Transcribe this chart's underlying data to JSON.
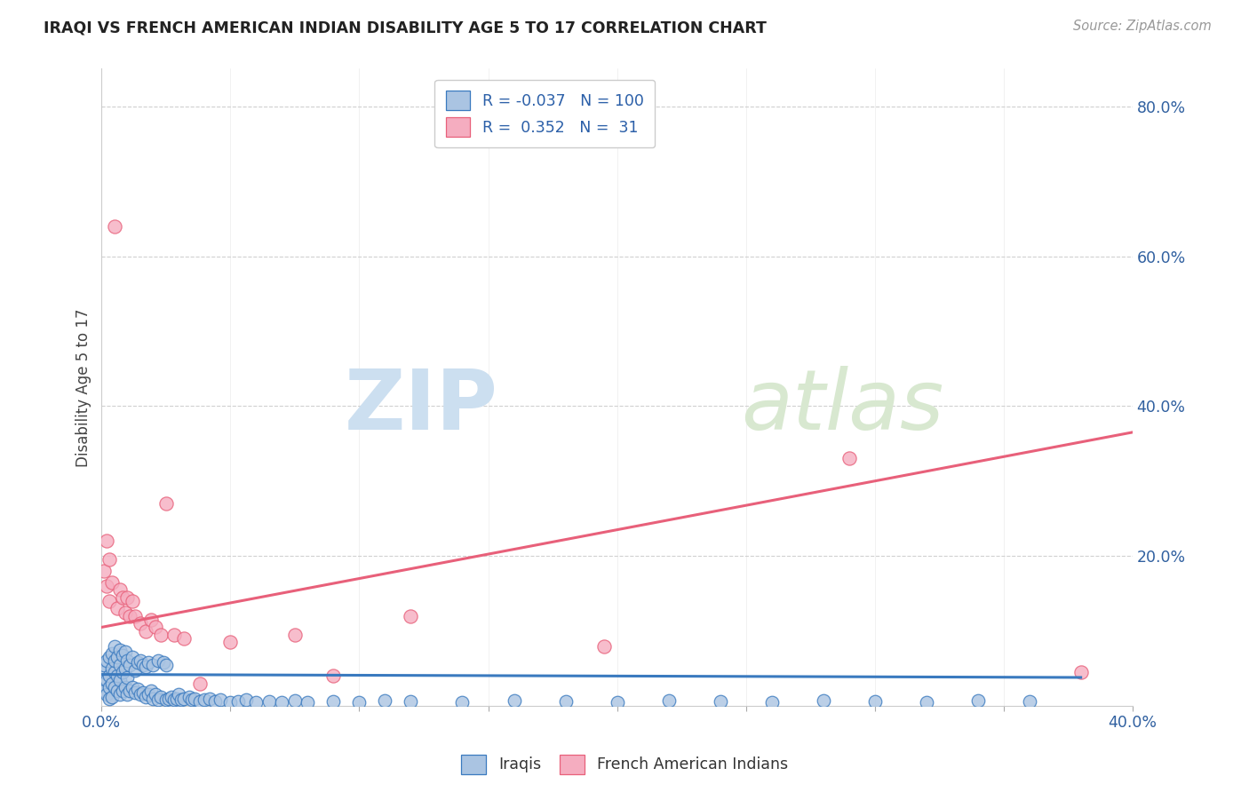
{
  "title": "IRAQI VS FRENCH AMERICAN INDIAN DISABILITY AGE 5 TO 17 CORRELATION CHART",
  "source": "Source: ZipAtlas.com",
  "ylabel": "Disability Age 5 to 17",
  "xlim": [
    0.0,
    0.4
  ],
  "ylim": [
    0.0,
    0.85
  ],
  "iraqis_R": -0.037,
  "iraqis_N": 100,
  "french_R": 0.352,
  "french_N": 31,
  "iraqis_color": "#aac4e2",
  "french_color": "#f5adc0",
  "iraqis_line_color": "#3a7abf",
  "french_line_color": "#e8607a",
  "legend_iraqis_label": "Iraqis",
  "legend_french_label": "French American Indians",
  "watermark_zip": "ZIP",
  "watermark_atlas": "atlas",
  "grid_color": "#d0d0d0",
  "right_yticks": [
    0.2,
    0.4,
    0.6,
    0.8
  ],
  "right_yticklabels": [
    "20.0%",
    "40.0%",
    "60.0%",
    "80.0%"
  ],
  "iraqis_x": [
    0.0,
    0.001,
    0.001,
    0.001,
    0.002,
    0.002,
    0.002,
    0.003,
    0.003,
    0.003,
    0.003,
    0.004,
    0.004,
    0.004,
    0.004,
    0.005,
    0.005,
    0.005,
    0.005,
    0.006,
    0.006,
    0.006,
    0.007,
    0.007,
    0.007,
    0.007,
    0.008,
    0.008,
    0.008,
    0.009,
    0.009,
    0.009,
    0.01,
    0.01,
    0.01,
    0.011,
    0.011,
    0.012,
    0.012,
    0.013,
    0.013,
    0.014,
    0.014,
    0.015,
    0.015,
    0.016,
    0.016,
    0.017,
    0.017,
    0.018,
    0.018,
    0.019,
    0.02,
    0.02,
    0.021,
    0.022,
    0.022,
    0.023,
    0.024,
    0.025,
    0.025,
    0.026,
    0.027,
    0.028,
    0.029,
    0.03,
    0.031,
    0.032,
    0.034,
    0.035,
    0.036,
    0.038,
    0.04,
    0.042,
    0.044,
    0.046,
    0.05,
    0.053,
    0.056,
    0.06,
    0.065,
    0.07,
    0.075,
    0.08,
    0.09,
    0.1,
    0.11,
    0.12,
    0.14,
    0.16,
    0.18,
    0.2,
    0.22,
    0.24,
    0.26,
    0.28,
    0.3,
    0.32,
    0.34,
    0.36
  ],
  "iraqis_y": [
    0.03,
    0.02,
    0.045,
    0.055,
    0.015,
    0.035,
    0.06,
    0.025,
    0.04,
    0.065,
    0.01,
    0.03,
    0.05,
    0.07,
    0.012,
    0.025,
    0.045,
    0.06,
    0.08,
    0.02,
    0.04,
    0.065,
    0.015,
    0.035,
    0.055,
    0.075,
    0.02,
    0.045,
    0.068,
    0.025,
    0.05,
    0.072,
    0.015,
    0.038,
    0.06,
    0.02,
    0.055,
    0.025,
    0.065,
    0.018,
    0.048,
    0.022,
    0.058,
    0.015,
    0.06,
    0.018,
    0.055,
    0.012,
    0.052,
    0.016,
    0.058,
    0.02,
    0.01,
    0.055,
    0.015,
    0.008,
    0.06,
    0.012,
    0.058,
    0.008,
    0.055,
    0.01,
    0.012,
    0.008,
    0.01,
    0.015,
    0.008,
    0.01,
    0.012,
    0.008,
    0.01,
    0.006,
    0.008,
    0.01,
    0.006,
    0.008,
    0.005,
    0.006,
    0.008,
    0.005,
    0.006,
    0.005,
    0.007,
    0.005,
    0.006,
    0.005,
    0.007,
    0.006,
    0.005,
    0.007,
    0.006,
    0.005,
    0.007,
    0.006,
    0.005,
    0.007,
    0.006,
    0.005,
    0.007,
    0.006
  ],
  "french_x": [
    0.001,
    0.002,
    0.002,
    0.003,
    0.003,
    0.004,
    0.005,
    0.006,
    0.007,
    0.008,
    0.009,
    0.01,
    0.011,
    0.012,
    0.013,
    0.015,
    0.017,
    0.019,
    0.021,
    0.023,
    0.025,
    0.028,
    0.032,
    0.038,
    0.05,
    0.075,
    0.09,
    0.12,
    0.195,
    0.29,
    0.38
  ],
  "french_y": [
    0.18,
    0.22,
    0.16,
    0.195,
    0.14,
    0.165,
    0.64,
    0.13,
    0.155,
    0.145,
    0.125,
    0.145,
    0.12,
    0.14,
    0.12,
    0.11,
    0.1,
    0.115,
    0.105,
    0.095,
    0.27,
    0.095,
    0.09,
    0.03,
    0.085,
    0.095,
    0.04,
    0.12,
    0.08,
    0.33,
    0.045
  ],
  "iraqis_trend_x": [
    0.0,
    0.38
  ],
  "iraqis_trend_y": [
    0.042,
    0.038
  ],
  "french_trend_x": [
    0.0,
    0.4
  ],
  "french_trend_y": [
    0.105,
    0.365
  ]
}
